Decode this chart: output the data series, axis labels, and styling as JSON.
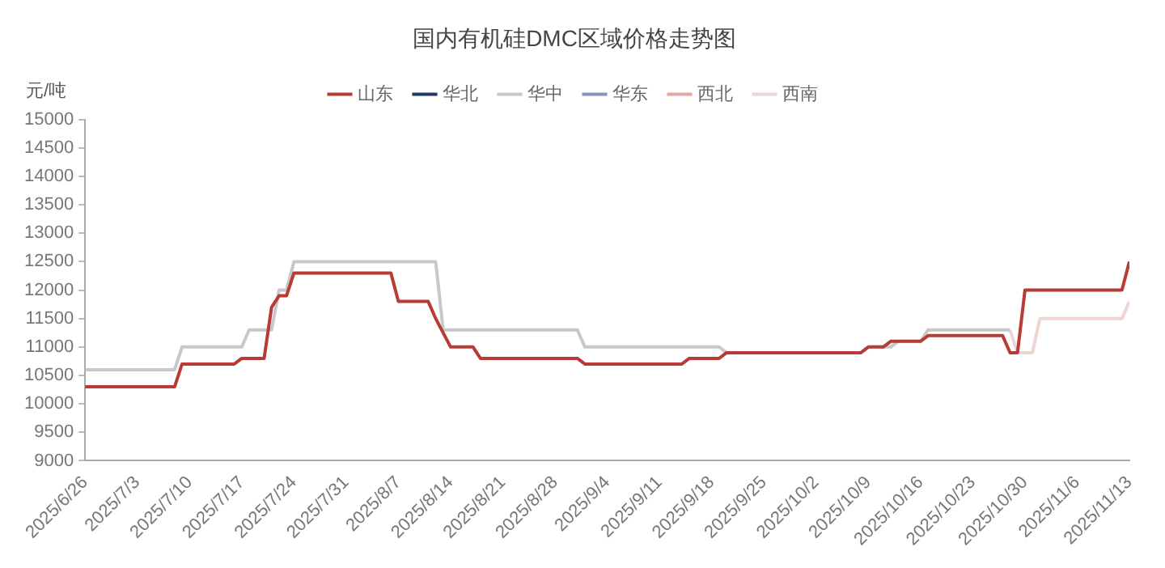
{
  "chart_data": {
    "type": "line",
    "title": "国内有机硅DMC区域价格走势图",
    "ylabel": "元/吨",
    "xlim": [
      "2025-06-26",
      "2025-11-13"
    ],
    "xticks": [
      {
        "value": "2025-06-26",
        "label": "2025/6/26"
      },
      {
        "value": "2025-07-03",
        "label": "2025/7/3"
      },
      {
        "value": "2025-07-10",
        "label": "2025/7/10"
      },
      {
        "value": "2025-07-17",
        "label": "2025/7/17"
      },
      {
        "value": "2025-07-24",
        "label": "2025/7/24"
      },
      {
        "value": "2025-07-31",
        "label": "2025/7/31"
      },
      {
        "value": "2025-08-07",
        "label": "2025/8/7"
      },
      {
        "value": "2025-08-14",
        "label": "2025/8/14"
      },
      {
        "value": "2025-08-21",
        "label": "2025/8/21"
      },
      {
        "value": "2025-08-28",
        "label": "2025/8/28"
      },
      {
        "value": "2025-09-04",
        "label": "2025/9/4"
      },
      {
        "value": "2025-09-11",
        "label": "2025/9/11"
      },
      {
        "value": "2025-09-18",
        "label": "2025/9/18"
      },
      {
        "value": "2025-09-25",
        "label": "2025/9/25"
      },
      {
        "value": "2025-10-02",
        "label": "2025/10/2"
      },
      {
        "value": "2025-10-09",
        "label": "2025/10/9"
      },
      {
        "value": "2025-10-16",
        "label": "2025/10/16"
      },
      {
        "value": "2025-10-23",
        "label": "2025/10/23"
      },
      {
        "value": "2025-10-30",
        "label": "2025/10/30"
      },
      {
        "value": "2025-11-06",
        "label": "2025/11/6"
      },
      {
        "value": "2025-11-13",
        "label": "2025/11/13"
      }
    ],
    "ylim": [
      9000,
      15000
    ],
    "yticks": [
      9000,
      9500,
      10000,
      10500,
      11000,
      11500,
      12000,
      12500,
      13000,
      13500,
      14000,
      14500,
      15000
    ],
    "grid": false,
    "legend": "top",
    "marker": "none",
    "line_style": "solid",
    "series": [
      {
        "name": "山东",
        "color": "#b83b35",
        "x": [
          "2025-06-26",
          "2025-07-08",
          "2025-07-09",
          "2025-07-16",
          "2025-07-17",
          "2025-07-20",
          "2025-07-21",
          "2025-07-22",
          "2025-07-23",
          "2025-07-24",
          "2025-08-06",
          "2025-08-07",
          "2025-08-11",
          "2025-08-12",
          "2025-08-14",
          "2025-08-17",
          "2025-08-18",
          "2025-08-31",
          "2025-09-01",
          "2025-09-14",
          "2025-09-15",
          "2025-09-19",
          "2025-09-20",
          "2025-10-08",
          "2025-10-09",
          "2025-10-11",
          "2025-10-12",
          "2025-10-16",
          "2025-10-17",
          "2025-10-27",
          "2025-10-28",
          "2025-10-29",
          "2025-10-30",
          "2025-11-12",
          "2025-11-13"
        ],
        "values": [
          10300,
          10300,
          10700,
          10700,
          10800,
          10800,
          11700,
          11900,
          11900,
          12300,
          12300,
          11800,
          11800,
          11500,
          11000,
          11000,
          10800,
          10800,
          10700,
          10700,
          10800,
          10800,
          10900,
          10900,
          11000,
          11000,
          11100,
          11100,
          11200,
          11200,
          10900,
          10900,
          12000,
          12000,
          12500
        ]
      },
      {
        "name": "华北",
        "color": "#1f3864"
      },
      {
        "name": "华中",
        "color": "#c8c8c8",
        "x": [
          "2025-06-26",
          "2025-07-08",
          "2025-07-09",
          "2025-07-17",
          "2025-07-18",
          "2025-07-21",
          "2025-07-22",
          "2025-07-23",
          "2025-07-24",
          "2025-08-12",
          "2025-08-13",
          "2025-08-31",
          "2025-09-01",
          "2025-09-19",
          "2025-09-20",
          "2025-10-08",
          "2025-10-09",
          "2025-10-12",
          "2025-10-13",
          "2025-10-16",
          "2025-10-17",
          "2025-10-28"
        ],
        "values": [
          10600,
          10600,
          11000,
          11000,
          11300,
          11300,
          12000,
          12000,
          12500,
          12500,
          11300,
          11300,
          11000,
          11000,
          10900,
          10900,
          11000,
          11000,
          11100,
          11100,
          11300,
          11300
        ]
      },
      {
        "name": "华东",
        "color": "#7f96b8"
      },
      {
        "name": "西北",
        "color": "#e8a3a3"
      },
      {
        "name": "西南",
        "color": "#f0d3d3",
        "x": [
          "2025-10-28",
          "2025-10-29",
          "2025-10-31",
          "2025-11-01",
          "2025-11-12",
          "2025-11-13"
        ],
        "values": [
          11300,
          10900,
          10900,
          11500,
          11500,
          11800
        ]
      }
    ]
  }
}
